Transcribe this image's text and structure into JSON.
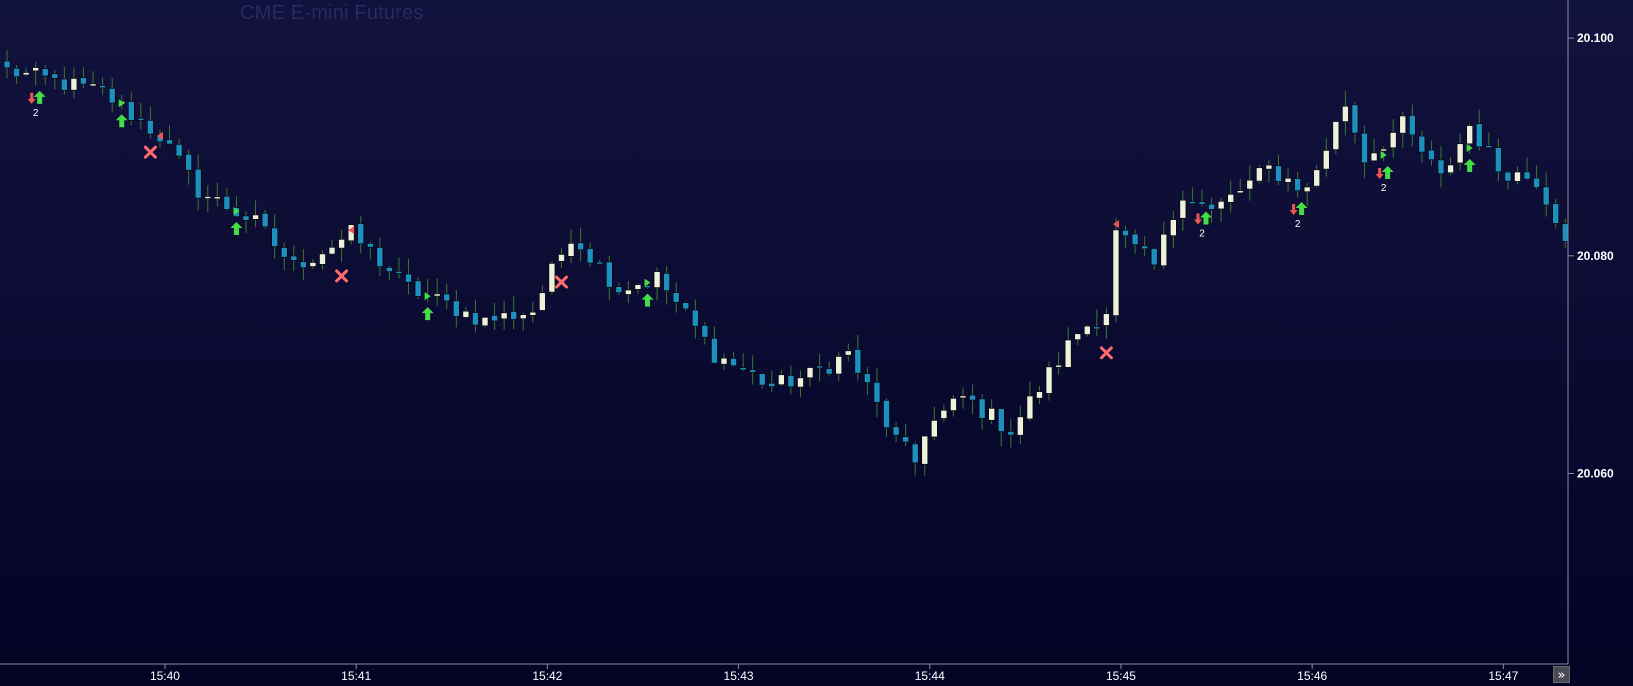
{
  "chart_title": "CME E-mini Futures",
  "scroll_icon": "double-chevron-right-icon",
  "colors": {
    "background_top": "#12123e",
    "background_bottom": "#030326",
    "bull_candle": "#eef2dc",
    "bear_candle": "#1e90c0",
    "wick": "#3a7a2a",
    "axis_line": "#8a8aa0",
    "buy_arrow": "#44dd44",
    "sell_arrow": "#ee5555",
    "exit_cross": "#ff6b6b",
    "text": "#ffffff"
  },
  "chart_data": {
    "type": "candlestick",
    "title": "",
    "xlabel": "",
    "ylabel": "",
    "ylim": [
      20.0425,
      20.1035
    ],
    "yticks": [
      {
        "value": 20.1,
        "label": "20.100"
      },
      {
        "value": 20.08,
        "label": "20.080"
      },
      {
        "value": 20.06,
        "label": "20.060"
      }
    ],
    "xticks": [
      {
        "index": 16,
        "label": "15:40"
      },
      {
        "index": 36,
        "label": "15:41"
      },
      {
        "index": 56,
        "label": "15:42"
      },
      {
        "index": 76,
        "label": "15:43"
      },
      {
        "index": 96,
        "label": "15:44"
      },
      {
        "index": 116,
        "label": "15:45"
      },
      {
        "index": 136,
        "label": "15:46"
      },
      {
        "index": 156,
        "label": "15:47"
      }
    ],
    "bars_visible": 164,
    "grid": false,
    "legend": "none",
    "key_points": [
      [
        0,
        20.097
      ],
      [
        10,
        20.095
      ],
      [
        16,
        20.091
      ],
      [
        20,
        20.086
      ],
      [
        26,
        20.083
      ],
      [
        30,
        20.079
      ],
      [
        36,
        20.082
      ],
      [
        42,
        20.077
      ],
      [
        50,
        20.074
      ],
      [
        55,
        20.075
      ],
      [
        59,
        20.082
      ],
      [
        64,
        20.077
      ],
      [
        68,
        20.078
      ],
      [
        74,
        20.071
      ],
      [
        80,
        20.068
      ],
      [
        84,
        20.069
      ],
      [
        88,
        20.071
      ],
      [
        93,
        20.063
      ],
      [
        95,
        20.061
      ],
      [
        96,
        20.064
      ],
      [
        100,
        20.067
      ],
      [
        105,
        20.064
      ],
      [
        112,
        20.073
      ],
      [
        115,
        20.075
      ],
      [
        116,
        20.082
      ],
      [
        120,
        20.079
      ],
      [
        123,
        20.086
      ],
      [
        126,
        20.084
      ],
      [
        132,
        20.088
      ],
      [
        136,
        20.086
      ],
      [
        138,
        20.09
      ],
      [
        140,
        20.094
      ],
      [
        142,
        20.089
      ],
      [
        146,
        20.092
      ],
      [
        150,
        20.087
      ],
      [
        153,
        20.092
      ],
      [
        156,
        20.088
      ],
      [
        160,
        20.087
      ],
      [
        163,
        20.082
      ]
    ],
    "trade_markers": [
      {
        "type": "buy",
        "index": 3,
        "count": "2"
      },
      {
        "type": "sell",
        "index": 3
      },
      {
        "type": "buy",
        "index": 12
      },
      {
        "type": "exit",
        "index": 15
      },
      {
        "type": "buy",
        "index": 24
      },
      {
        "type": "exit",
        "index": 35
      },
      {
        "type": "buy",
        "index": 44
      },
      {
        "type": "exit",
        "index": 58
      },
      {
        "type": "buy",
        "index": 67
      },
      {
        "type": "exit",
        "index": 115
      },
      {
        "type": "buy",
        "index": 125,
        "count": "2"
      },
      {
        "type": "sell",
        "index": 125
      },
      {
        "type": "buy",
        "index": 135,
        "count": "2"
      },
      {
        "type": "sell",
        "index": 135
      },
      {
        "type": "buy",
        "index": 144,
        "count": "2"
      },
      {
        "type": "sell",
        "index": 144
      },
      {
        "type": "buy",
        "index": 153
      }
    ],
    "signal_flags": [
      {
        "type": "buy",
        "index": 12
      },
      {
        "type": "sell",
        "index": 16
      },
      {
        "type": "buy",
        "index": 24
      },
      {
        "type": "sell",
        "index": 36
      },
      {
        "type": "buy",
        "index": 44
      },
      {
        "type": "buy",
        "index": 67
      },
      {
        "type": "sell",
        "index": 116
      },
      {
        "type": "buy",
        "index": 144
      },
      {
        "type": "buy",
        "index": 153
      }
    ]
  }
}
